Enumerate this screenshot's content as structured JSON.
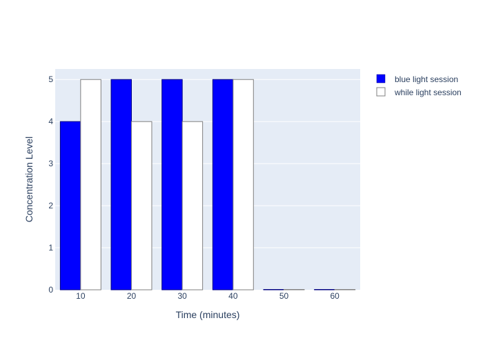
{
  "chart_data": {
    "type": "bar",
    "categories": [
      "10",
      "20",
      "30",
      "40",
      "50",
      "60"
    ],
    "series": [
      {
        "name": "blue light session",
        "values": [
          4,
          5,
          5,
          5,
          0,
          0
        ],
        "color": "#0000ff",
        "outline": "#000080"
      },
      {
        "name": "while light session",
        "values": [
          5,
          4,
          4,
          5,
          0,
          0
        ],
        "color": "#ffffff",
        "outline": "#7f7f7f"
      }
    ],
    "xlabel": "Time (minutes)",
    "ylabel": "Concentration Level",
    "ylim": [
      0,
      5.25
    ],
    "yticks": [
      0,
      1,
      2,
      3,
      4,
      5
    ],
    "grid": true,
    "legend_position": "top-right",
    "plot_background": "#e5ecf6"
  }
}
